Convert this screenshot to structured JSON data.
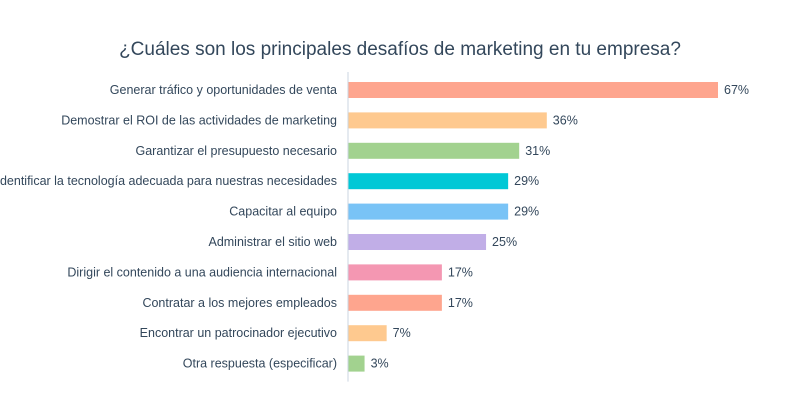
{
  "chart_data": {
    "type": "bar",
    "orientation": "horizontal",
    "title": "¿Cuáles son los principales desafíos de marketing en tu empresa?",
    "categories": [
      "Generar tráfico y oportunidades de venta",
      "Demostrar el ROI de las actividades de marketing",
      "Garantizar el presupuesto necesario",
      "Identificar la tecnología adecuada para nuestras necesidades",
      "Capacitar al equipo",
      "Administrar el sitio web",
      "Dirigir el contenido a una audiencia internacional",
      "Contratar a los mejores empleados",
      "Encontrar un patrocinador ejecutivo",
      "Otra respuesta (especificar)"
    ],
    "values": [
      67,
      36,
      31,
      29,
      29,
      25,
      17,
      17,
      7,
      3
    ],
    "labels": [
      "67%",
      "36%",
      "31%",
      "29%",
      "29%",
      "25%",
      "17%",
      "17%",
      "7%",
      "3%"
    ],
    "colors": [
      "#fea58e",
      "#fec98f",
      "#a2d28f",
      "#00c8d6",
      "#79c3f6",
      "#c1aee7",
      "#f497b2",
      "#fea58e",
      "#fec98f",
      "#a2d28f"
    ],
    "axis_color": "#cbd6e2",
    "xlim": [
      0,
      67
    ],
    "grid": false,
    "legend": "none"
  }
}
